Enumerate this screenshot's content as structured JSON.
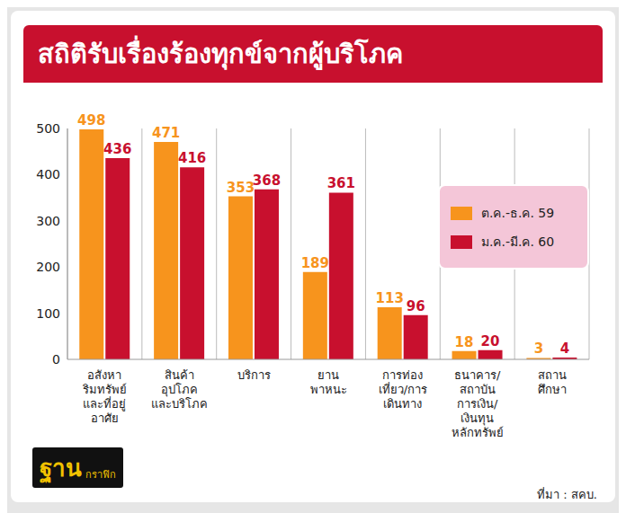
{
  "chart_data": {
    "type": "bar",
    "title": "สถิติรับเรื่องร้องทุกข์จากผู้บริโภค",
    "categories": [
      "อสังหา\nริมทรัพย์\nและที่อยู่\nอาศัย",
      "สินค้า\nอุปโภค\nและบริโภค",
      "บริการ",
      "ยาน\nพาหนะ",
      "การท่อง\nเที่ยว/การ\nเดินทาง",
      "ธนาคาร/\nสถาบัน\nการเงิน/\nเงินทุน\nหลักทรัพย์",
      "สถาน\nศึกษา"
    ],
    "series": [
      {
        "name": "ต.ค.-ธ.ค. 59",
        "color": "#f7941d",
        "values": [
          498,
          471,
          353,
          189,
          113,
          18,
          3
        ]
      },
      {
        "name": "ม.ค.-มี.ค. 60",
        "color": "#c8102e",
        "values": [
          436,
          416,
          368,
          361,
          96,
          20,
          4
        ]
      }
    ],
    "ylim": [
      0,
      500
    ],
    "yticks": [
      0,
      100,
      200,
      300,
      400,
      500
    ],
    "grid": true,
    "data_labels": true,
    "legend": "right",
    "source": "ที่มา : สคบ.",
    "brand": {
      "main": "ฐาน",
      "sub": "กราฟิก"
    }
  }
}
